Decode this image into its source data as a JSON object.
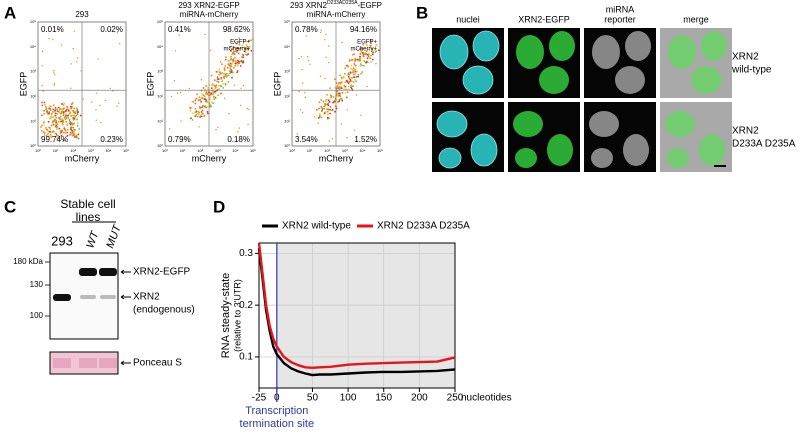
{
  "panel_labels": [
    "A",
    "B",
    "C",
    "D"
  ],
  "flow": {
    "x_label": "mCherry",
    "y_label": "EGFP",
    "axis_ticks": [
      "10⁰",
      "10¹",
      "10²",
      "10³",
      "10⁴",
      "10⁵"
    ],
    "double_positive": [
      "EGFP+",
      "mCherry+"
    ],
    "plots": [
      {
        "title": [
          [
            {
              "text": "293"
            }
          ]
        ],
        "shows_double_positive": false,
        "quadrants": {
          "upper_left": "0.01%",
          "upper_right": "0.02%",
          "lower_left": "99.74%",
          "lower_right": "0.23%"
        }
      },
      {
        "title": [
          [
            {
              "text": "293 XRN2-EGFP"
            }
          ],
          [
            {
              "text": "miRNA-mCherry"
            }
          ]
        ],
        "shows_double_positive": true,
        "quadrants": {
          "upper_left": "0.41%",
          "upper_right": "98.62%",
          "lower_left": "0.79%",
          "lower_right": "0.18%"
        }
      },
      {
        "title": [
          [
            {
              "text": "293 XRN2"
            },
            {
              "text": "D233AD235A",
              "sup": true
            },
            {
              "text": "-EGFP"
            }
          ],
          [
            {
              "text": "miRNA-mCherry"
            }
          ]
        ],
        "shows_double_positive": true,
        "quadrants": {
          "upper_left": "0.78%",
          "upper_right": "94.16%",
          "lower_left": "3.54%",
          "lower_right": "1.52%"
        }
      }
    ]
  },
  "microscopy": {
    "columns": [
      [
        "nuclei"
      ],
      [
        "XRN2-EGFP"
      ],
      [
        "miRNA",
        "reporter"
      ],
      [
        "merge"
      ]
    ],
    "rows": [
      [
        "XRN2",
        "wild-type"
      ],
      [
        "XRN2",
        "D233A D235A"
      ]
    ]
  },
  "western": {
    "header": [
      "Stable cell",
      "lines"
    ],
    "lanes": [
      "293",
      "WT",
      "MUT"
    ],
    "markers": [
      "180 kDa",
      "130",
      "100"
    ],
    "bands": [
      [
        "XRN2-EGFP"
      ],
      [
        "XRN2",
        "(endogenous)"
      ]
    ],
    "loading": "Ponceau S"
  },
  "chart_data": {
    "type": "line",
    "ylabel": [
      "RNA steady-state",
      "(relative to 3'UTR)"
    ],
    "xlabel": "nucleotides",
    "annotation": [
      "Transcription",
      "termination site"
    ],
    "marker_x": 0,
    "x": [
      -25,
      -20,
      -15,
      -10,
      -5,
      0,
      10,
      20,
      30,
      40,
      50,
      60,
      75,
      100,
      125,
      150,
      175,
      200,
      225,
      250
    ],
    "series": [
      {
        "name": "XRN2 wild-type",
        "color": "#000000",
        "values": [
          0.31,
          0.25,
          0.19,
          0.15,
          0.12,
          0.105,
          0.088,
          0.078,
          0.072,
          0.068,
          0.065,
          0.066,
          0.066,
          0.068,
          0.07,
          0.071,
          0.071,
          0.072,
          0.073,
          0.076
        ]
      },
      {
        "name": "XRN2 D233A D235A",
        "color": "#e8141b",
        "values": [
          0.32,
          0.26,
          0.2,
          0.16,
          0.135,
          0.12,
          0.1,
          0.09,
          0.084,
          0.08,
          0.079,
          0.08,
          0.081,
          0.085,
          0.087,
          0.088,
          0.089,
          0.09,
          0.091,
          0.099
        ]
      }
    ],
    "xlim": [
      -25,
      250
    ],
    "xticks": [
      -25,
      0,
      50,
      100,
      150,
      200,
      250
    ],
    "ylim": [
      0.04,
      0.32
    ],
    "yticks": [
      0.1,
      0.2,
      0.3
    ]
  }
}
